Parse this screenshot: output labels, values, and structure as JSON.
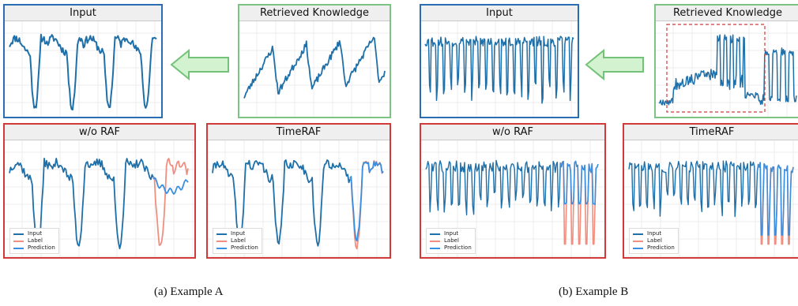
{
  "example_a": {
    "input_title": "Input",
    "retrieved_title": "Retrieved Knowledge",
    "worag_title": "w/o RAF",
    "timeraf_title": "TimeRAF",
    "caption": "(a)  Example A"
  },
  "example_b": {
    "input_title": "Input",
    "retrieved_title": "Retrieved Knowledge",
    "worag_title": "w/o RAF",
    "timeraf_title": "TimeRAF",
    "caption": "(b)  Example B"
  },
  "legend": {
    "input": "Input",
    "label": "Label",
    "prediction": "Prediction"
  },
  "colors": {
    "input": "#1f6fa8",
    "label": "#f08f80",
    "prediction": "#3b8fe0",
    "input_border": "#2a6db3",
    "knowledge_border": "#7dc384",
    "output_border": "#d23a3a",
    "arrow_fill": "#d3f2d0",
    "arrow_stroke": "#74c27a",
    "highlight_box": "#d23a3a"
  }
}
